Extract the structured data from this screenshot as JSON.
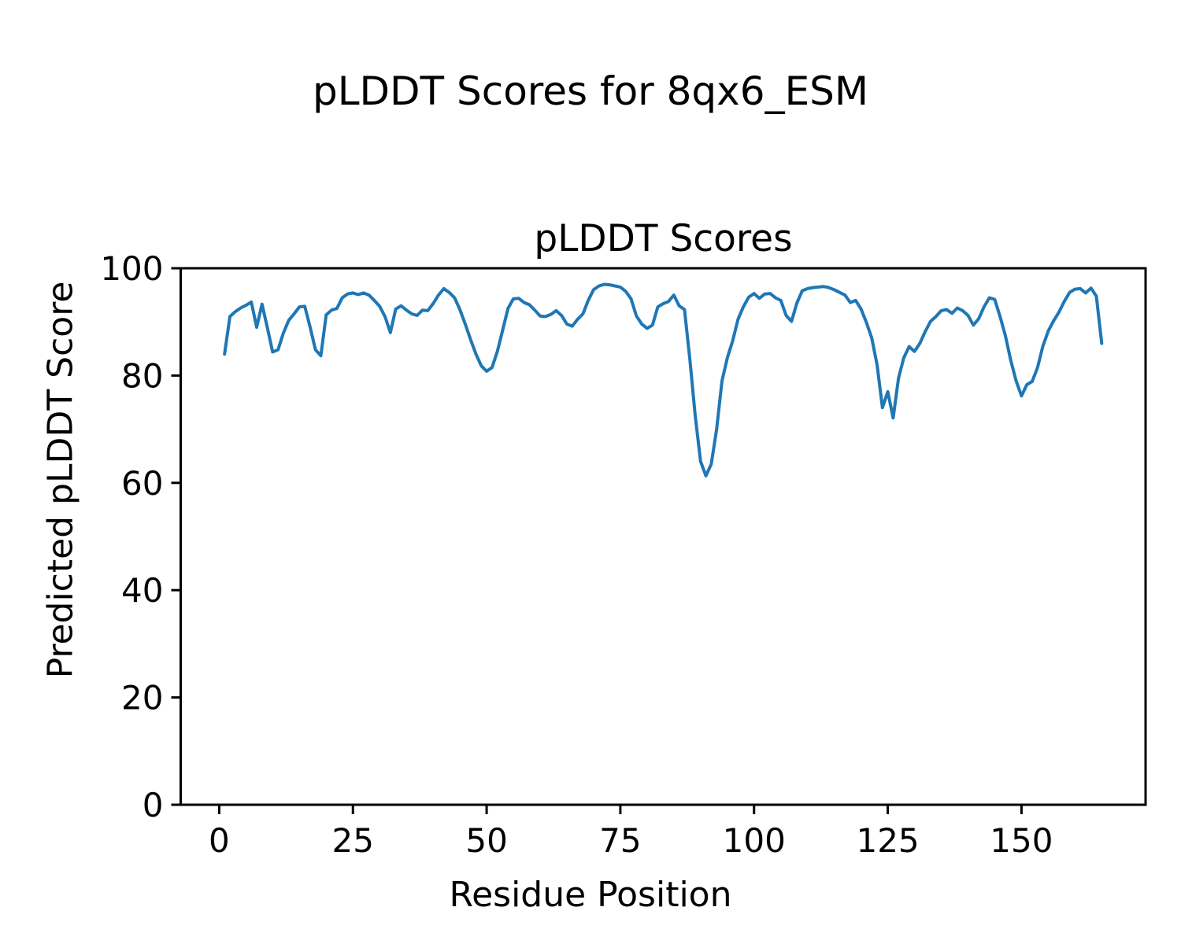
{
  "figure": {
    "suptitle": "pLDDT Scores for 8qx6_ESM"
  },
  "chart_data": {
    "type": "line",
    "title": "pLDDT Scores",
    "xlabel": "Residue Position",
    "ylabel": "Predicted pLDDT Score",
    "series_name": "pLDDT",
    "x_start": 1,
    "x_step": 1,
    "values": [
      84.0,
      91.0,
      91.9,
      92.6,
      93.1,
      93.7,
      89.0,
      93.3,
      88.9,
      84.4,
      84.8,
      87.9,
      90.3,
      91.5,
      92.8,
      92.9,
      89.0,
      84.8,
      83.7,
      91.3,
      92.2,
      92.5,
      94.5,
      95.2,
      95.4,
      95.1,
      95.4,
      95.0,
      94.0,
      92.9,
      91.0,
      88.0,
      92.4,
      93.0,
      92.2,
      91.5,
      91.2,
      92.2,
      92.1,
      93.4,
      95.0,
      96.2,
      95.5,
      94.5,
      92.3,
      89.6,
      86.7,
      84.0,
      81.8,
      80.8,
      81.5,
      84.5,
      88.5,
      92.5,
      94.3,
      94.4,
      93.6,
      93.2,
      92.2,
      91.1,
      91.0,
      91.4,
      92.1,
      91.2,
      89.6,
      89.2,
      90.5,
      91.5,
      94.0,
      96.0,
      96.7,
      97.0,
      96.9,
      96.7,
      96.5,
      95.7,
      94.3,
      91.1,
      89.6,
      88.8,
      89.4,
      92.8,
      93.4,
      93.8,
      95.0,
      93.0,
      92.3,
      83.0,
      72.5,
      64.0,
      61.3,
      63.5,
      70.0,
      79.0,
      83.3,
      86.5,
      90.5,
      92.8,
      94.6,
      95.3,
      94.4,
      95.2,
      95.3,
      94.5,
      94.0,
      91.2,
      90.1,
      93.5,
      95.8,
      96.2,
      96.4,
      96.5,
      96.6,
      96.4,
      96.0,
      95.5,
      95.0,
      93.6,
      94.0,
      92.4,
      89.9,
      87.0,
      82.0,
      74.0,
      77.0,
      72.1,
      79.5,
      83.3,
      85.4,
      84.5,
      86.0,
      88.2,
      90.1,
      91.0,
      92.1,
      92.3,
      91.6,
      92.6,
      92.1,
      91.2,
      89.4,
      90.6,
      92.8,
      94.5,
      94.2,
      91.0,
      87.4,
      82.8,
      79.0,
      76.2,
      78.3,
      78.9,
      81.5,
      85.5,
      88.3,
      90.2,
      91.8,
      93.8,
      95.5,
      96.1,
      96.2,
      95.4,
      96.3,
      94.8,
      86.0
    ],
    "xlim": [
      -7.2,
      173.2
    ],
    "ylim": [
      0,
      100
    ],
    "xticks": [
      0,
      25,
      50,
      75,
      100,
      125,
      150
    ],
    "yticks": [
      0,
      20,
      40,
      60,
      80,
      100
    ],
    "line_color": "#1f77b4",
    "axis_color": "#000000",
    "grid": false,
    "legend": null
  }
}
